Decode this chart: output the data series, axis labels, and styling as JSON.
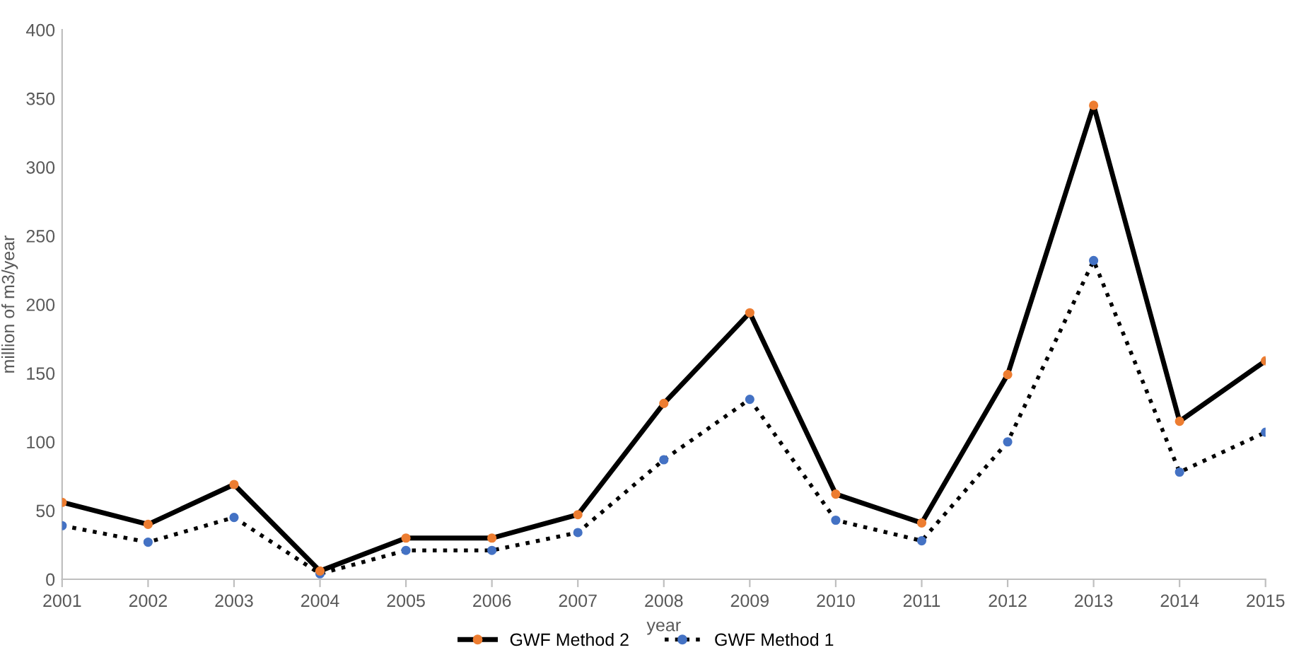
{
  "chart_data": {
    "type": "line",
    "xlabel": "year",
    "ylabel": "million of m3/year",
    "categories": [
      "2001",
      "2002",
      "2003",
      "2004",
      "2005",
      "2006",
      "2007",
      "2008",
      "2009",
      "2010",
      "2011",
      "2012",
      "2013",
      "2014",
      "2015"
    ],
    "series": [
      {
        "name": "GWF Method 2",
        "color": "#000000",
        "line_style": "solid",
        "colors": [
          "#ed7d31",
          "#ed7d31",
          "#ed7d31",
          "#ed7d31",
          "#ed7d31",
          "#ed7d31",
          "#ed7d31",
          "#ed7d31",
          "#ed7d31",
          "#ed7d31",
          "#ed7d31",
          "#ed7d31",
          "#ed7d31",
          "#ed7d31",
          "#ed7d31"
        ],
        "values": [
          56,
          40,
          69,
          6,
          30,
          30,
          47,
          128,
          194,
          62,
          41,
          149,
          345,
          115,
          159
        ]
      },
      {
        "name": "GWF Method 1",
        "color": "#000000",
        "line_style": "dotted",
        "colors": [
          "#4472c4",
          "#4472c4",
          "#4472c4",
          "#4472c4",
          "#4472c4",
          "#4472c4",
          "#4472c4",
          "#4472c4",
          "#4472c4",
          "#4472c4",
          "#4472c4",
          "#4472c4",
          "#4472c4",
          "#4472c4",
          "#4472c4"
        ],
        "values": [
          39,
          27,
          45,
          4,
          21,
          21,
          34,
          87,
          131,
          43,
          28,
          100,
          232,
          78,
          107
        ]
      }
    ],
    "ylim": [
      0,
      400
    ],
    "yticks": [
      0,
      50,
      100,
      150,
      200,
      250,
      300,
      350,
      400
    ],
    "grid": false,
    "marker": "circle",
    "legend": "bottom"
  }
}
